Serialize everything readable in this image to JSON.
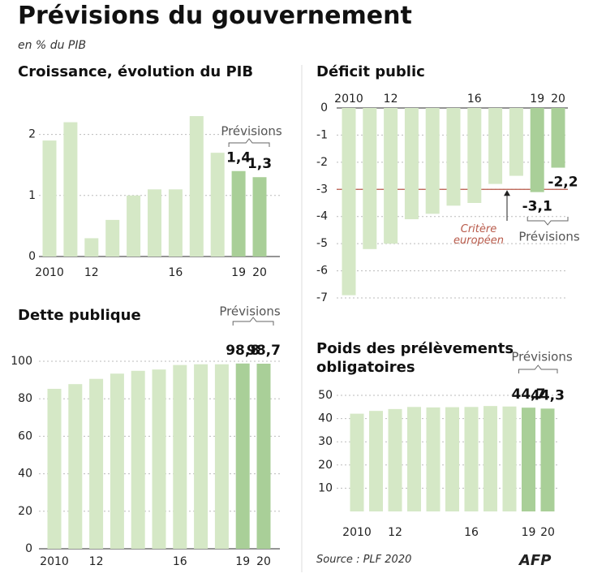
{
  "title": "Prévisions du gouvernement",
  "subtitle": "en % du PIB",
  "source": "Source : PLF 2020",
  "credit": "AFP",
  "chart_data": [
    {
      "type": "bar",
      "title": "Croissance, évolution du PIB",
      "categories": [
        "2010",
        null,
        "12",
        null,
        null,
        null,
        "16",
        null,
        null,
        "19",
        "20"
      ],
      "values": [
        1.9,
        2.2,
        0.3,
        0.6,
        1.0,
        1.1,
        1.1,
        2.3,
        1.7,
        1.4,
        1.3
      ],
      "value_labels": [
        null,
        null,
        null,
        null,
        null,
        null,
        null,
        null,
        null,
        "1,4",
        "1,3"
      ],
      "colors": [
        "#d5e8c6",
        "#d5e8c6",
        "#d5e8c6",
        "#d5e8c6",
        "#d5e8c6",
        "#d5e8c6",
        "#d5e8c6",
        "#d5e8c6",
        "#d5e8c6",
        "#a9cf98",
        "#a9cf98"
      ],
      "annotation": "Prévisions",
      "ylim": [
        0,
        2.5
      ],
      "yticks": [
        0,
        1,
        2
      ],
      "grid": true
    },
    {
      "type": "bar",
      "title": "Déficit public",
      "categories": [
        "2010",
        null,
        "12",
        null,
        null,
        null,
        "16",
        null,
        null,
        "19",
        "20"
      ],
      "values": [
        -6.9,
        -5.2,
        -5.0,
        -4.1,
        -3.9,
        -3.6,
        -3.5,
        -2.8,
        -2.5,
        -3.1,
        -2.2
      ],
      "value_labels": [
        null,
        null,
        null,
        null,
        null,
        null,
        null,
        null,
        null,
        "-3,1",
        "-2,2"
      ],
      "colors": [
        "#d5e8c6",
        "#d5e8c6",
        "#d5e8c6",
        "#d5e8c6",
        "#d5e8c6",
        "#d5e8c6",
        "#d5e8c6",
        "#d5e8c6",
        "#d5e8c6",
        "#a9cf98",
        "#a9cf98"
      ],
      "annotation": "Prévisions",
      "reference_line": -3,
      "reference_label": "Critère européen",
      "reference_color": "#b85a4a",
      "ylim": [
        -7,
        0
      ],
      "yticks": [
        0,
        -1,
        -2,
        -3,
        -4,
        -5,
        -6,
        -7
      ],
      "grid": true
    },
    {
      "type": "bar",
      "title": "Dette publique",
      "categories": [
        "2010",
        null,
        "12",
        null,
        null,
        null,
        "16",
        null,
        null,
        "19",
        "20"
      ],
      "values": [
        85.3,
        87.8,
        90.6,
        93.4,
        94.9,
        95.6,
        98.0,
        98.4,
        98.4,
        98.8,
        98.7
      ],
      "value_labels": [
        null,
        null,
        null,
        null,
        null,
        null,
        null,
        null,
        null,
        "98,8",
        "98,7"
      ],
      "colors": [
        "#d5e8c6",
        "#d5e8c6",
        "#d5e8c6",
        "#d5e8c6",
        "#d5e8c6",
        "#d5e8c6",
        "#d5e8c6",
        "#d5e8c6",
        "#d5e8c6",
        "#a9cf98",
        "#a9cf98"
      ],
      "annotation": "Prévisions",
      "ylim": [
        0,
        100
      ],
      "yticks": [
        0,
        20,
        40,
        60,
        80,
        100
      ],
      "grid": true
    },
    {
      "type": "bar",
      "title": "Poids des prélèvements obligatoires",
      "categories": [
        "2010",
        null,
        "12",
        null,
        null,
        null,
        "16",
        null,
        null,
        "19",
        "20"
      ],
      "values": [
        42.1,
        43.3,
        44.1,
        45.0,
        44.8,
        44.9,
        45.0,
        45.4,
        45.2,
        44.7,
        44.3
      ],
      "value_labels": [
        null,
        null,
        null,
        null,
        null,
        null,
        null,
        null,
        null,
        "44,7",
        "44,3"
      ],
      "colors": [
        "#d5e8c6",
        "#d5e8c6",
        "#d5e8c6",
        "#d5e8c6",
        "#d5e8c6",
        "#d5e8c6",
        "#d5e8c6",
        "#d5e8c6",
        "#d5e8c6",
        "#a9cf98",
        "#a9cf98"
      ],
      "annotation": "Prévisions",
      "ylim": [
        0,
        50
      ],
      "yticks": [
        10,
        20,
        30,
        40,
        50
      ],
      "grid": true
    }
  ]
}
